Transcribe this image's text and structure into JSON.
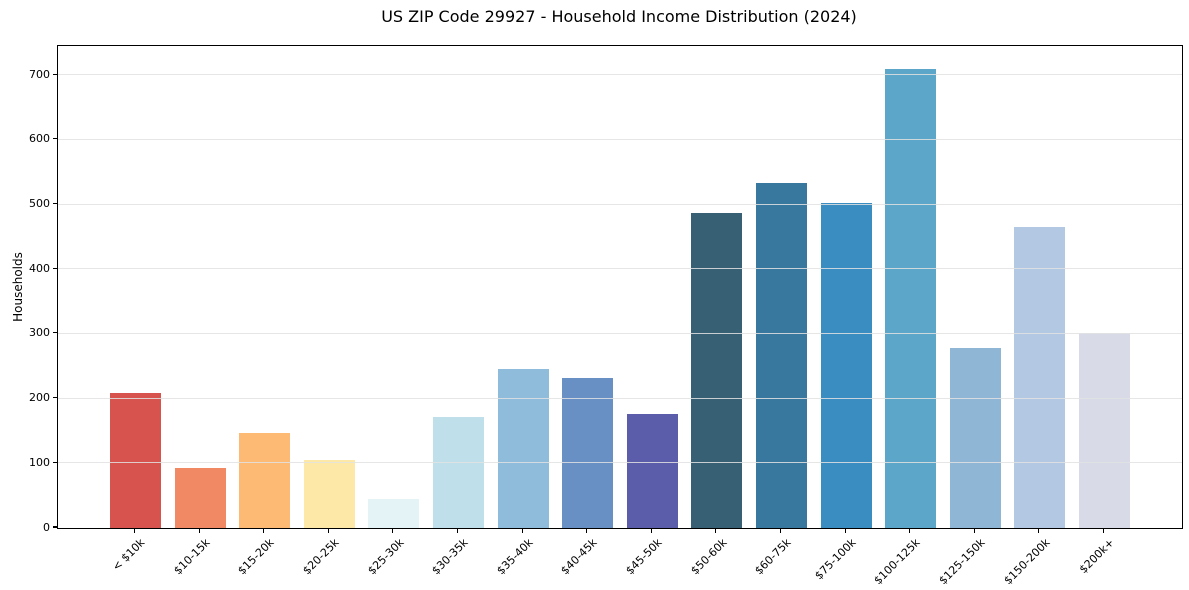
{
  "chart_data": {
    "type": "bar",
    "title": "US ZIP Code 29927 - Household Income Distribution (2024)",
    "xlabel": "",
    "ylabel": "Households",
    "categories": [
      "< $10k",
      "$10-15k",
      "$15-20k",
      "$20-25k",
      "$25-30k",
      "$30-35k",
      "$35-40k",
      "$40-45k",
      "$45-50k",
      "$50-60k",
      "$60-75k",
      "$75-100k",
      "$100-125k",
      "$125-150k",
      "$150-200k",
      "$200k+"
    ],
    "values": [
      209,
      93,
      147,
      105,
      45,
      172,
      246,
      232,
      177,
      487,
      534,
      503,
      709,
      278,
      465,
      301
    ],
    "bar_colors": [
      "#d6544d",
      "#f28965",
      "#fcba74",
      "#fde8a8",
      "#e4f3f5",
      "#bfe0ea",
      "#8fbcdb",
      "#6890c5",
      "#5b5caa",
      "#386074",
      "#38789f",
      "#3a8dc0",
      "#5ca6c9",
      "#90b6d5",
      "#b3c8e2",
      "#d8dae8"
    ],
    "yticks": [
      0,
      100,
      200,
      300,
      400,
      500,
      600,
      700
    ],
    "ylim": [
      0,
      745
    ],
    "x_tick_rotation_deg": 45,
    "grid": "horizontal-light-gray-over-bars",
    "legend": "none",
    "plot_background": "#ffffff",
    "spine_color": "#000000"
  }
}
